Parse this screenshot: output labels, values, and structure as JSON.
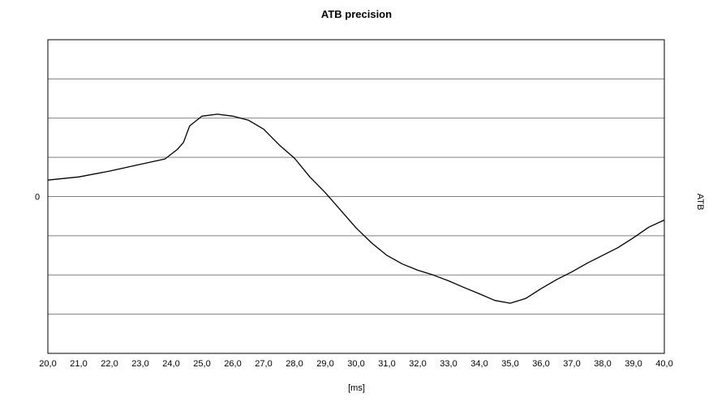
{
  "chart_data": {
    "type": "line",
    "title": "ATB precision",
    "xlabel": "[ms]",
    "ylabel": "ATB",
    "xlim": [
      20.0,
      40.0
    ],
    "ylim": [
      -4,
      4
    ],
    "grid": true,
    "x_ticks": [
      "20,0",
      "21,0",
      "22,0",
      "23,0",
      "24,0",
      "25,0",
      "26,0",
      "27,0",
      "28,0",
      "29,0",
      "30,0",
      "31,0",
      "32,0",
      "33,0",
      "34,0",
      "35,0",
      "36,0",
      "37,0",
      "38,0",
      "39,0",
      "40,0"
    ],
    "y_ticks": [
      {
        "value": 0,
        "label": "0"
      }
    ],
    "series": [
      {
        "color": "#000000",
        "x": [
          20.0,
          21.0,
          22.0,
          23.0,
          23.8,
          24.2,
          24.4,
          24.6,
          25.0,
          25.5,
          26.0,
          26.5,
          27.0,
          27.5,
          28.0,
          28.5,
          29.0,
          29.5,
          30.0,
          30.5,
          31.0,
          31.5,
          32.0,
          32.5,
          33.0,
          33.5,
          34.0,
          34.5,
          35.0,
          35.5,
          36.0,
          36.5,
          37.0,
          37.5,
          38.0,
          38.5,
          39.0,
          39.5,
          40.0
        ],
        "y": [
          0.42,
          0.5,
          0.65,
          0.82,
          0.96,
          1.2,
          1.38,
          1.8,
          2.05,
          2.1,
          2.05,
          1.95,
          1.72,
          1.32,
          0.98,
          0.5,
          0.1,
          -0.35,
          -0.8,
          -1.18,
          -1.5,
          -1.72,
          -1.88,
          -2.0,
          -2.15,
          -2.32,
          -2.48,
          -2.65,
          -2.72,
          -2.6,
          -2.35,
          -2.12,
          -1.92,
          -1.7,
          -1.5,
          -1.3,
          -1.05,
          -0.78,
          -0.6
        ]
      }
    ]
  }
}
